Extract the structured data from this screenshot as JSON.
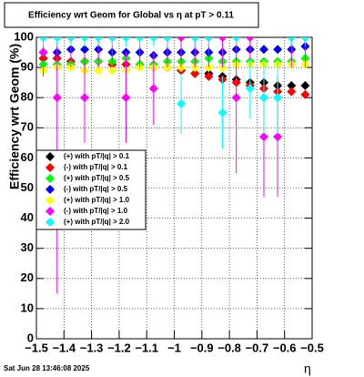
{
  "chart_data": {
    "type": "scatter",
    "title": "Efficiency wrt Geom for Global vs   η  at pT > 0.11",
    "x_label": "η",
    "y_label": "Efficiency wrt Geom (%)",
    "x": [
      -1.475,
      -1.425,
      -1.375,
      -1.325,
      -1.275,
      -1.225,
      -1.175,
      -1.125,
      -1.075,
      -1.025,
      -0.975,
      -0.925,
      -0.875,
      -0.825,
      -0.775,
      -0.725,
      -0.675,
      -0.625,
      -0.575,
      -0.525
    ],
    "series": [
      {
        "name": "(+) with pT/|q| > 0.1",
        "color": "#000000",
        "values": [
          93,
          93,
          92,
          92,
          92,
          91,
          91,
          91,
          90,
          90,
          89,
          88,
          88,
          87,
          86,
          85,
          85,
          84,
          84,
          84
        ],
        "errors": [
          1,
          1,
          1,
          1,
          1,
          1,
          1,
          1,
          1,
          1,
          1,
          1,
          1,
          1,
          1,
          1,
          1,
          1,
          1,
          1
        ]
      },
      {
        "name": "(-) with pT/|q| > 0.1",
        "color": "#ff0000",
        "values": [
          93,
          93,
          92,
          92,
          92,
          91,
          91,
          91,
          90,
          90,
          89,
          88,
          87,
          86,
          85,
          84,
          83,
          82,
          82,
          81
        ],
        "errors": [
          1,
          1,
          1,
          1,
          1,
          1,
          1,
          1,
          1,
          1,
          1,
          1,
          1,
          1,
          1,
          1,
          1,
          1,
          1,
          1
        ]
      },
      {
        "name": "(+) with pT/|q| > 0.5",
        "color": "#00ff00",
        "values": [
          91,
          91,
          91,
          92,
          92,
          92,
          93,
          91,
          91,
          92,
          92,
          92,
          93,
          92,
          92,
          92,
          92,
          92,
          92,
          93
        ],
        "errors": [
          1,
          1,
          1,
          1,
          1,
          1,
          1,
          1,
          1,
          1,
          1,
          1,
          1,
          1,
          1,
          1,
          1,
          1,
          1,
          1
        ]
      },
      {
        "name": "(-) with pT/|q| > 0.5",
        "color": "#0000ff",
        "values": [
          95,
          95,
          96,
          96,
          96,
          95,
          95,
          95,
          94,
          95,
          95,
          95,
          95,
          95,
          96,
          96,
          96,
          96,
          96,
          97
        ],
        "errors": [
          1,
          1,
          1,
          1,
          1,
          1,
          1,
          1,
          1,
          1,
          1,
          1,
          1,
          1,
          1,
          1,
          1,
          1,
          1,
          1
        ]
      },
      {
        "name": "(+) with pT/|q| > 1.0",
        "color": "#ffff00",
        "values": [
          89,
          90,
          90,
          89,
          89,
          89,
          89,
          90,
          90,
          90,
          90,
          90,
          90,
          90,
          91,
          91,
          91,
          91,
          91,
          91
        ],
        "errors": [
          1.5,
          1.5,
          1.5,
          1.5,
          1.5,
          1.5,
          1.5,
          1.5,
          1.5,
          1.5,
          1.5,
          1.5,
          1.5,
          1.5,
          1.5,
          1.5,
          1.5,
          1.5,
          1.5,
          1.5
        ]
      },
      {
        "name": "(-) with pT/|q| > 1.0",
        "color": "#ff00ff",
        "values": [
          95,
          80,
          100,
          80,
          100,
          100,
          80,
          100,
          83,
          100,
          100,
          100,
          100,
          100,
          80,
          100,
          67,
          67,
          100,
          100
        ],
        "errors": [
          8,
          65,
          10,
          15,
          10,
          10,
          15,
          10,
          12,
          10,
          10,
          10,
          10,
          10,
          25,
          10,
          20,
          20,
          10,
          10
        ]
      },
      {
        "name": "(+) with pT/|q| > 2.0",
        "color": "#00ffff",
        "values": [
          100,
          100,
          100,
          100,
          100,
          100,
          100,
          100,
          100,
          100,
          78,
          100,
          100,
          75,
          100,
          83,
          80,
          80,
          100,
          100
        ],
        "errors": [
          3,
          3,
          3,
          3,
          3,
          3,
          3,
          3,
          3,
          3,
          10,
          3,
          3,
          12,
          3,
          10,
          12,
          12,
          3,
          3
        ]
      }
    ],
    "xlim": [
      -1.5,
      -0.5
    ],
    "xticks": [
      {
        "value": -1.5,
        "label": "−1.5"
      },
      {
        "value": -1.4,
        "label": "−1.4"
      },
      {
        "value": -1.3,
        "label": "−1.3"
      },
      {
        "value": -1.2,
        "label": "−1.2"
      },
      {
        "value": -1.1,
        "label": "−1.1"
      },
      {
        "value": -1,
        "label": "−1"
      },
      {
        "value": -0.9,
        "label": "−0.9"
      },
      {
        "value": -0.8,
        "label": "−0.8"
      },
      {
        "value": -0.7,
        "label": "−0.7"
      },
      {
        "value": -0.6,
        "label": "−0.6"
      },
      {
        "value": -0.5,
        "label": "−0.5"
      }
    ],
    "ylim": [
      0,
      100
    ],
    "yticks": [
      0,
      10,
      20,
      30,
      40,
      50,
      60,
      70,
      80,
      90,
      100
    ],
    "grid": true
  },
  "timestamp": "Sat Jun 28 13:46:08 2025"
}
